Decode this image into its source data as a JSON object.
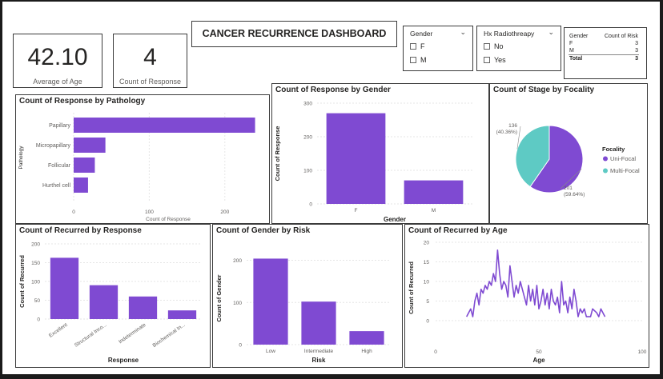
{
  "dashboard": {
    "title": "CANCER RECURRENCE DASHBOARD"
  },
  "kpis": [
    {
      "value": "42.10",
      "label": "Average of Age"
    },
    {
      "value": "4",
      "label": "Count of Response"
    }
  ],
  "slicers": {
    "gender": {
      "title": "Gender",
      "options": [
        "F",
        "M"
      ]
    },
    "radiotherapy": {
      "title": "Hx Radiothreapy",
      "options": [
        "No",
        "Yes"
      ]
    }
  },
  "risk_table": {
    "headers": [
      "Gender",
      "Count of Risk"
    ],
    "rows": [
      {
        "g": "F",
        "v": "3"
      },
      {
        "g": "M",
        "v": "3"
      }
    ],
    "total": {
      "g": "Total",
      "v": "3"
    }
  },
  "colors": {
    "purple": "#7f4ad2",
    "teal": "#5ecac4"
  },
  "chart_data": [
    {
      "id": "pathology",
      "type": "bar",
      "orientation": "horizontal",
      "title": "Count of Response by Pathology",
      "categories": [
        "Papillary",
        "Micropapillary",
        "Follicular",
        "Hurthel cell"
      ],
      "values": [
        240,
        42,
        28,
        19
      ],
      "xlabel": "Count of Response",
      "ylabel": "Pathology",
      "xlim": [
        0,
        250
      ],
      "xticks": [
        0,
        100,
        200
      ]
    },
    {
      "id": "gender",
      "type": "bar",
      "title": "Count of Response by Gender",
      "categories": [
        "F",
        "M"
      ],
      "values": [
        270,
        70
      ],
      "xlabel": "Gender",
      "ylabel": "Count of Response",
      "ylim": [
        0,
        300
      ],
      "yticks": [
        0,
        100,
        200,
        300
      ]
    },
    {
      "id": "stage",
      "type": "pie",
      "title": "Count of Stage by Focality",
      "legend_title": "Focality",
      "labels": [
        "Uni-Focal",
        "Multi-Focal"
      ],
      "values": [
        201,
        136
      ],
      "value_labels": [
        "201\n(59.64%)",
        "136\n(40.36%)"
      ],
      "legend": "right"
    },
    {
      "id": "response",
      "type": "bar",
      "title": "Count of Recurred by Response",
      "categories": [
        "Excellent",
        "Structural Inco...",
        "Indeterminate",
        "Biochemical In..."
      ],
      "values": [
        163,
        90,
        60,
        23
      ],
      "xlabel": "Response",
      "ylabel": "Count of Recurred",
      "ylim": [
        0,
        200
      ],
      "yticks": [
        0,
        50,
        100,
        150,
        200
      ]
    },
    {
      "id": "risk",
      "type": "bar",
      "title": "Count of Gender by Risk",
      "categories": [
        "Low",
        "Intermediate",
        "High"
      ],
      "values": [
        204,
        102,
        32
      ],
      "xlabel": "Risk",
      "ylabel": "Count of Gender",
      "ylim": [
        0,
        220
      ],
      "yticks": [
        0,
        100,
        200
      ]
    },
    {
      "id": "age",
      "type": "line",
      "title": "Count of Recurred by Age",
      "x": [
        15,
        17,
        18,
        19,
        20,
        21,
        22,
        23,
        24,
        25,
        26,
        27,
        28,
        29,
        30,
        31,
        32,
        33,
        34,
        35,
        36,
        37,
        38,
        39,
        40,
        41,
        42,
        43,
        44,
        45,
        46,
        47,
        48,
        49,
        50,
        51,
        52,
        53,
        54,
        55,
        56,
        57,
        58,
        59,
        60,
        61,
        62,
        63,
        64,
        65,
        66,
        67,
        68,
        69,
        70,
        71,
        72,
        73,
        75,
        76,
        78,
        79,
        80,
        81,
        82
      ],
      "values": [
        1,
        3,
        1,
        5,
        7,
        4,
        8,
        7,
        9,
        8,
        10,
        9,
        12,
        10,
        18,
        12,
        8,
        10,
        9,
        6,
        14,
        10,
        6,
        9,
        7,
        10,
        8,
        6,
        4,
        9,
        5,
        8,
        4,
        9,
        3,
        5,
        8,
        4,
        7,
        3,
        8,
        5,
        4,
        6,
        2,
        10,
        4,
        5,
        2,
        6,
        3,
        8,
        5,
        1,
        3,
        2,
        3,
        1,
        1,
        3,
        2,
        1,
        3,
        2,
        1
      ],
      "xlabel": "Age",
      "ylabel": "Count of Recurred",
      "xlim": [
        0,
        100
      ],
      "ylim": [
        0,
        20
      ],
      "xticks": [
        0,
        50,
        100
      ],
      "yticks": [
        0,
        5,
        10,
        15,
        20
      ]
    }
  ]
}
